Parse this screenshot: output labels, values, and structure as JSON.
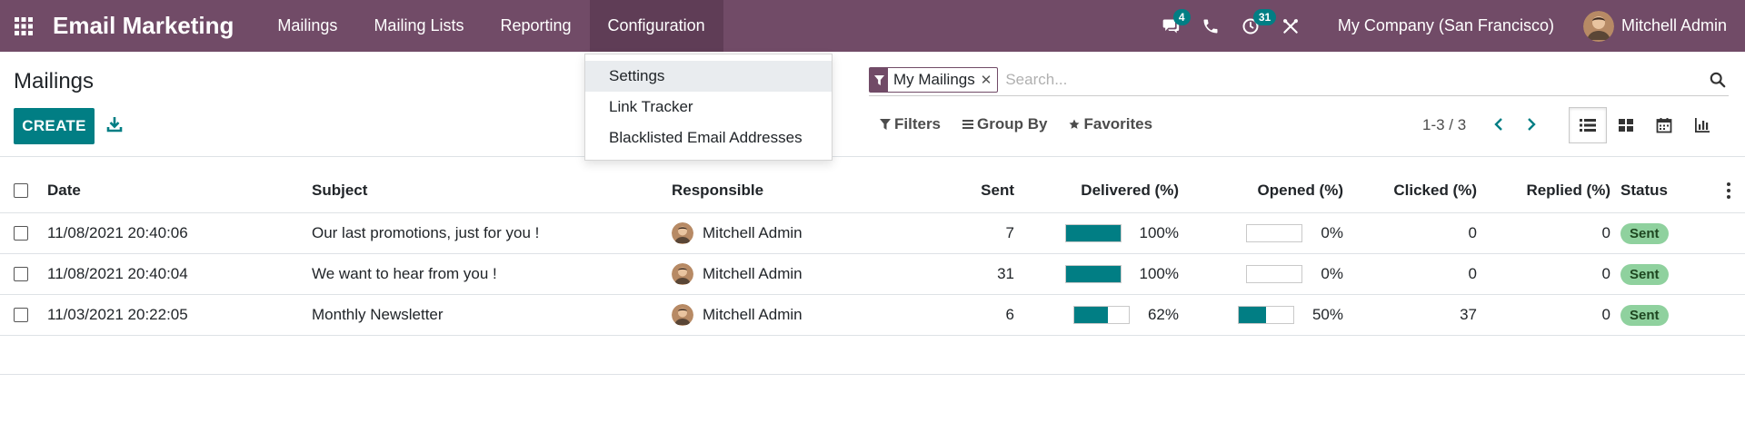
{
  "navbar": {
    "brand": "Email Marketing",
    "menu": [
      {
        "label": "Mailings"
      },
      {
        "label": "Mailing Lists"
      },
      {
        "label": "Reporting"
      },
      {
        "label": "Configuration"
      }
    ],
    "messages_count": "4",
    "activities_count": "31",
    "company": "My Company (San Francisco)",
    "user": "Mitchell Admin",
    "icons": [
      "apps-icon",
      "chat-icon",
      "phone-icon",
      "clock-icon",
      "tools-icon"
    ],
    "accent_color": "#714B67"
  },
  "dropdown": {
    "items": [
      {
        "label": "Settings"
      },
      {
        "label": "Link Tracker"
      },
      {
        "label": "Blacklisted Email Addresses"
      }
    ]
  },
  "control_panel": {
    "title": "Mailings",
    "create_label": "CREATE",
    "search": {
      "facet": "My Mailings",
      "placeholder": "Search..."
    },
    "filters_label": "Filters",
    "group_by_label": "Group By",
    "favorites_label": "Favorites",
    "pager": "1-3 / 3",
    "views": [
      "list-view-icon",
      "kanban-view-icon",
      "calendar-view-icon",
      "graph-view-icon"
    ],
    "active_view": "list",
    "primary_color": "#017e84"
  },
  "table": {
    "headers": {
      "date": "Date",
      "subject": "Subject",
      "responsible": "Responsible",
      "sent": "Sent",
      "delivered": "Delivered (%)",
      "opened": "Opened (%)",
      "clicked": "Clicked (%)",
      "replied": "Replied (%)",
      "status": "Status"
    },
    "rows": [
      {
        "date": "11/08/2021 20:40:06",
        "subject": "Our last promotions, just for you !",
        "responsible": "Mitchell Admin",
        "sent": "7",
        "delivered": "100%",
        "delivered_value": 100,
        "opened": "0%",
        "opened_value": 0,
        "clicked": "0",
        "replied": "0",
        "status": "Sent"
      },
      {
        "date": "11/08/2021 20:40:04",
        "subject": "We want to hear from you !",
        "responsible": "Mitchell Admin",
        "sent": "31",
        "delivered": "100%",
        "delivered_value": 100,
        "opened": "0%",
        "opened_value": 0,
        "clicked": "0",
        "replied": "0",
        "status": "Sent"
      },
      {
        "date": "11/03/2021 20:22:05",
        "subject": "Monthly Newsletter",
        "responsible": "Mitchell Admin",
        "sent": "6",
        "delivered": "62%",
        "delivered_value": 62,
        "opened": "50%",
        "opened_value": 50,
        "clicked": "37",
        "replied": "0",
        "status": "Sent"
      }
    ],
    "status_color": "#8fd19e"
  }
}
